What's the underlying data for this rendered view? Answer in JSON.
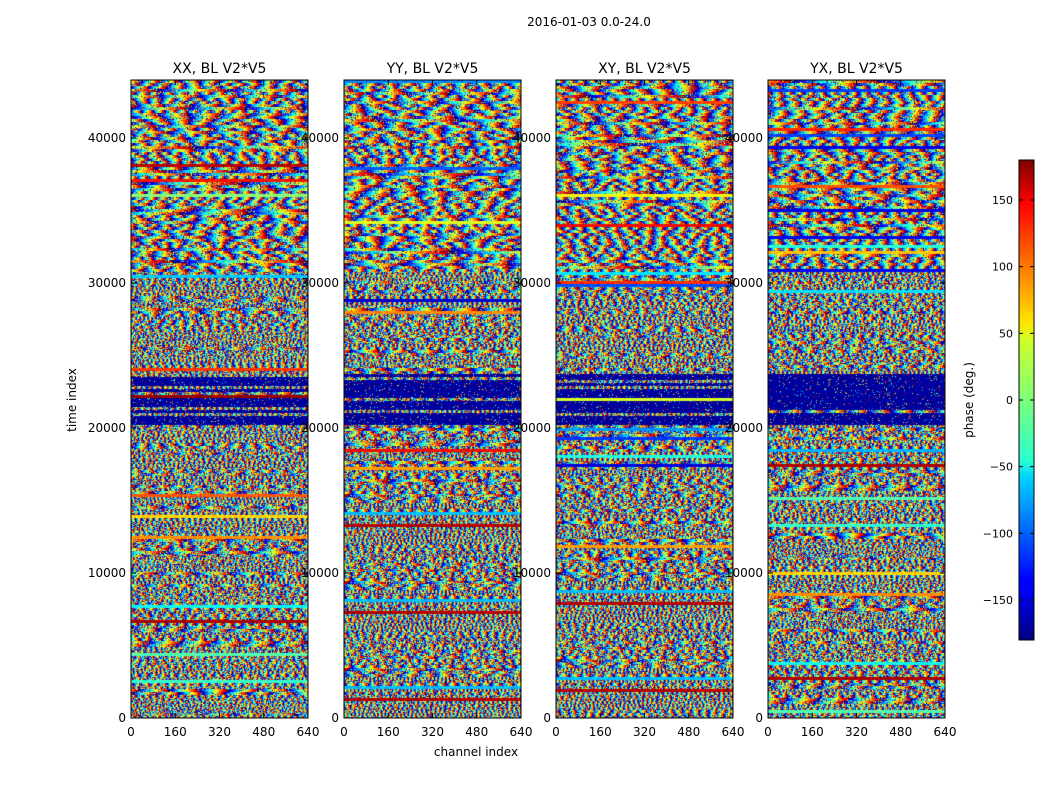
{
  "chart_data": {
    "type": "heatmap",
    "suptitle": "2016-01-03 0.0-24.0",
    "xlabel": "channel index",
    "ylabel": "time index",
    "xlim": [
      0,
      640
    ],
    "ylim": [
      0,
      44000
    ],
    "xticks": [
      0,
      160,
      320,
      480,
      640
    ],
    "yticks": [
      0,
      10000,
      20000,
      30000,
      40000
    ],
    "colormap": "jet",
    "colorbar": {
      "label": "phase (deg.)",
      "range": [
        -180,
        180
      ],
      "ticks": [
        150,
        100,
        50,
        0,
        -50,
        -100,
        -150
      ],
      "tick_labels": [
        "150",
        "100",
        "50",
        "0",
        "−50",
        "−100",
        "−150"
      ]
    },
    "panels": [
      {
        "title": "XX, BL V2*V5"
      },
      {
        "title": "YY, BL V2*V5"
      },
      {
        "title": "XY, BL V2*V5"
      },
      {
        "title": "YX, BL V2*V5"
      }
    ],
    "grid": false,
    "legend": "none"
  }
}
